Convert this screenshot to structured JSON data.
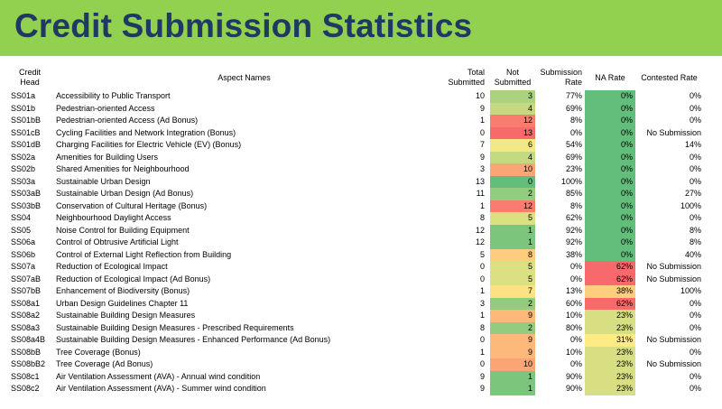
{
  "title": "Credit Submission Statistics",
  "headers": {
    "credit_head": [
      "Credit",
      "Head"
    ],
    "aspect": "Aspect Names",
    "total": [
      "Total",
      "Submitted"
    ],
    "not": [
      "Not",
      "Submitted"
    ],
    "rate": [
      "Submission",
      "Rate"
    ],
    "na": "NA Rate",
    "contested": "Contested Rate"
  },
  "colors": {
    "banner": "#92d050",
    "title": "#1f3864",
    "green": "#63be7b",
    "yellow": "#ffeb84",
    "red": "#f8696b"
  },
  "rows": [
    {
      "head": "SS01a",
      "name": "Accessibility to Public Transport",
      "total": "10",
      "not": "3",
      "rate": "77%",
      "na": "0%",
      "contested": "0%"
    },
    {
      "head": "SS01b",
      "name": "Pedestrian-oriented Access",
      "total": "9",
      "not": "4",
      "rate": "69%",
      "na": "0%",
      "contested": "0%"
    },
    {
      "head": "SS01bB",
      "name": "Pedestrian-oriented Access (Ad Bonus)",
      "total": "1",
      "not": "12",
      "rate": "8%",
      "na": "0%",
      "contested": "0%"
    },
    {
      "head": "SS01cB",
      "name": "Cycling Facilities and Network Integration (Bonus)",
      "total": "0",
      "not": "13",
      "rate": "0%",
      "na": "0%",
      "contested": "No Submission"
    },
    {
      "head": "SS01dB",
      "name": "Charging Facilities for Electric Vehicle (EV) (Bonus)",
      "total": "7",
      "not": "6",
      "rate": "54%",
      "na": "0%",
      "contested": "14%"
    },
    {
      "head": "SS02a",
      "name": "Amenities for Building Users",
      "total": "9",
      "not": "4",
      "rate": "69%",
      "na": "0%",
      "contested": "0%"
    },
    {
      "head": "SS02b",
      "name": "Shared Amenities for Neighbourhood",
      "total": "3",
      "not": "10",
      "rate": "23%",
      "na": "0%",
      "contested": "0%"
    },
    {
      "head": "SS03a",
      "name": "Sustainable Urban Design",
      "total": "13",
      "not": "0",
      "rate": "100%",
      "na": "0%",
      "contested": "0%"
    },
    {
      "head": "SS03aB",
      "name": "Sustainable Urban Design (Ad Bonus)",
      "total": "11",
      "not": "2",
      "rate": "85%",
      "na": "0%",
      "contested": "27%"
    },
    {
      "head": "SS03bB",
      "name": "Conservation of Cultural Heritage (Bonus)",
      "total": "1",
      "not": "12",
      "rate": "8%",
      "na": "0%",
      "contested": "100%"
    },
    {
      "head": "SS04",
      "name": "Neighbourhood Daylight Access",
      "total": "8",
      "not": "5",
      "rate": "62%",
      "na": "0%",
      "contested": "0%"
    },
    {
      "head": "SS05",
      "name": "Noise Control for Building Equipment",
      "total": "12",
      "not": "1",
      "rate": "92%",
      "na": "0%",
      "contested": "8%"
    },
    {
      "head": "SS06a",
      "name": "Control of Obtrusive Artificial Light",
      "total": "12",
      "not": "1",
      "rate": "92%",
      "na": "0%",
      "contested": "8%"
    },
    {
      "head": "SS06b",
      "name": "Control of External Light Reflection from Building",
      "total": "5",
      "not": "8",
      "rate": "38%",
      "na": "0%",
      "contested": "40%"
    },
    {
      "head": "SS07a",
      "name": "Reduction of Ecological Impact",
      "total": "0",
      "not": "5",
      "rate": "0%",
      "na": "62%",
      "contested": "No Submission"
    },
    {
      "head": "SS07aB",
      "name": "Reduction of Ecological Impact (Ad Bonus)",
      "total": "0",
      "not": "5",
      "rate": "0%",
      "na": "62%",
      "contested": "No Submission"
    },
    {
      "head": "SS07bB",
      "name": "Enhancement of Biodiversity (Bonus)",
      "total": "1",
      "not": "7",
      "rate": "13%",
      "na": "38%",
      "contested": "100%"
    },
    {
      "head": "SS08a1",
      "name": "Urban Design Guidelines Chapter 11",
      "total": "3",
      "not": "2",
      "rate": "60%",
      "na": "62%",
      "contested": "0%"
    },
    {
      "head": "SS08a2",
      "name": "Sustainable Building Design Measures",
      "total": "1",
      "not": "9",
      "rate": "10%",
      "na": "23%",
      "contested": "0%"
    },
    {
      "head": "SS08a3",
      "name": "Sustainable Building Design Measures - Prescribed Requirements",
      "total": "8",
      "not": "2",
      "rate": "80%",
      "na": "23%",
      "contested": "0%"
    },
    {
      "head": "SS08a4B",
      "name": "Sustainable Building Design Measures - Enhanced Performance (Ad Bonus)",
      "total": "0",
      "not": "9",
      "rate": "0%",
      "na": "31%",
      "contested": "No Submission"
    },
    {
      "head": "SS08bB",
      "name": "Tree Coverage (Bonus)",
      "total": "1",
      "not": "9",
      "rate": "10%",
      "na": "23%",
      "contested": "0%"
    },
    {
      "head": "SS08bB2",
      "name": "Tree Coverage (Ad Bonus)",
      "total": "0",
      "not": "10",
      "rate": "0%",
      "na": "23%",
      "contested": "No Submission"
    },
    {
      "head": "SS08c1",
      "name": "Air Ventilation Assessment (AVA) - Annual wind condition",
      "total": "9",
      "not": "1",
      "rate": "90%",
      "na": "23%",
      "contested": "0%"
    },
    {
      "head": "SS08c2",
      "name": "Air Ventilation Assessment (AVA) - Summer wind condition",
      "total": "9",
      "not": "1",
      "rate": "90%",
      "na": "23%",
      "contested": "0%"
    }
  ]
}
